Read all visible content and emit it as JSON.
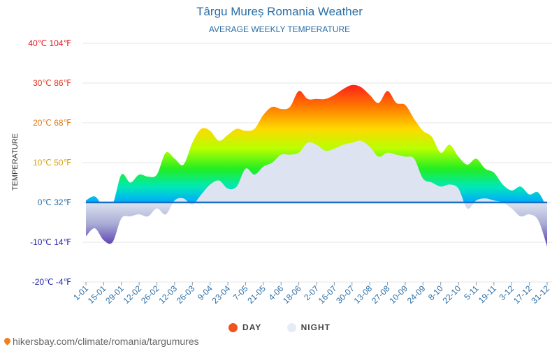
{
  "chart_data": {
    "type": "area",
    "title": "Târgu Mureș Romania Weather",
    "subtitle": "AVERAGE WEEKLY TEMPERATURE",
    "ylabel": "TEMPERATURE",
    "ylim": [
      -20,
      40
    ],
    "yticks": [
      {
        "value": 40,
        "label": "40℃ 104℉",
        "color": "#e8121e"
      },
      {
        "value": 30,
        "label": "30℃ 86℉",
        "color": "#e8351e"
      },
      {
        "value": 20,
        "label": "20℃ 68℉",
        "color": "#e27a16"
      },
      {
        "value": 10,
        "label": "10℃ 50℉",
        "color": "#d9a20a"
      },
      {
        "value": 0,
        "label": "0℃ 32℉",
        "color": "#2a6ea6"
      },
      {
        "value": -10,
        "label": "-10℃ 14℉",
        "color": "#2222aa"
      },
      {
        "value": -20,
        "label": "-20℃ -4℉",
        "color": "#2222aa"
      }
    ],
    "xticks": [
      "1-01",
      "15-01",
      "29-01",
      "12-02",
      "26-02",
      "12-03",
      "26-03",
      "9-04",
      "23-04",
      "7-05",
      "21-05",
      "4-06",
      "18-06",
      "2-07",
      "16-07",
      "30-07",
      "13-08",
      "27-08",
      "10-09",
      "24-09",
      "8-10",
      "22-10",
      "5-11",
      "19-11",
      "3-12",
      "17-12",
      "31-12"
    ],
    "series": [
      {
        "name": "DAY",
        "color": "#f0541e",
        "values": [
          0.5,
          1.5,
          -1,
          -0.5,
          7,
          5,
          7,
          6.5,
          7,
          12.5,
          11,
          9.5,
          15,
          18.5,
          18,
          15.5,
          17,
          18.5,
          18,
          18.5,
          22,
          24,
          23.5,
          24,
          28,
          26,
          26,
          26,
          27,
          28.5,
          29.5,
          29,
          27,
          25,
          28,
          25,
          24.5,
          21,
          18,
          16.5,
          12.5,
          14.5,
          11.5,
          9.5,
          11,
          8.5,
          7.5,
          4.5,
          3,
          4,
          2,
          2.5,
          -1.5
        ]
      },
      {
        "name": "NIGHT",
        "color": "#e6ecf5",
        "values": [
          -8.5,
          -6.5,
          -9.5,
          -10,
          -4,
          -3.5,
          -3,
          -3.5,
          -1.5,
          -3,
          0.5,
          1,
          -0.5,
          2,
          4.5,
          5.5,
          3.5,
          4,
          8.5,
          7,
          9,
          10,
          12,
          12,
          12.5,
          15,
          14.5,
          13,
          13.5,
          14.5,
          15,
          15.5,
          14,
          11.5,
          12.5,
          12,
          11.5,
          11,
          6,
          5,
          4,
          4.5,
          3.5,
          -1.5,
          0.5,
          1,
          0.5,
          0,
          -1.5,
          -3.5,
          -3,
          -4.5,
          -11
        ]
      }
    ]
  },
  "legend": {
    "day_label": "DAY",
    "night_label": "NIGHT"
  },
  "footer": {
    "source_text": "hikersbay.com/climate/romania/targumures"
  }
}
